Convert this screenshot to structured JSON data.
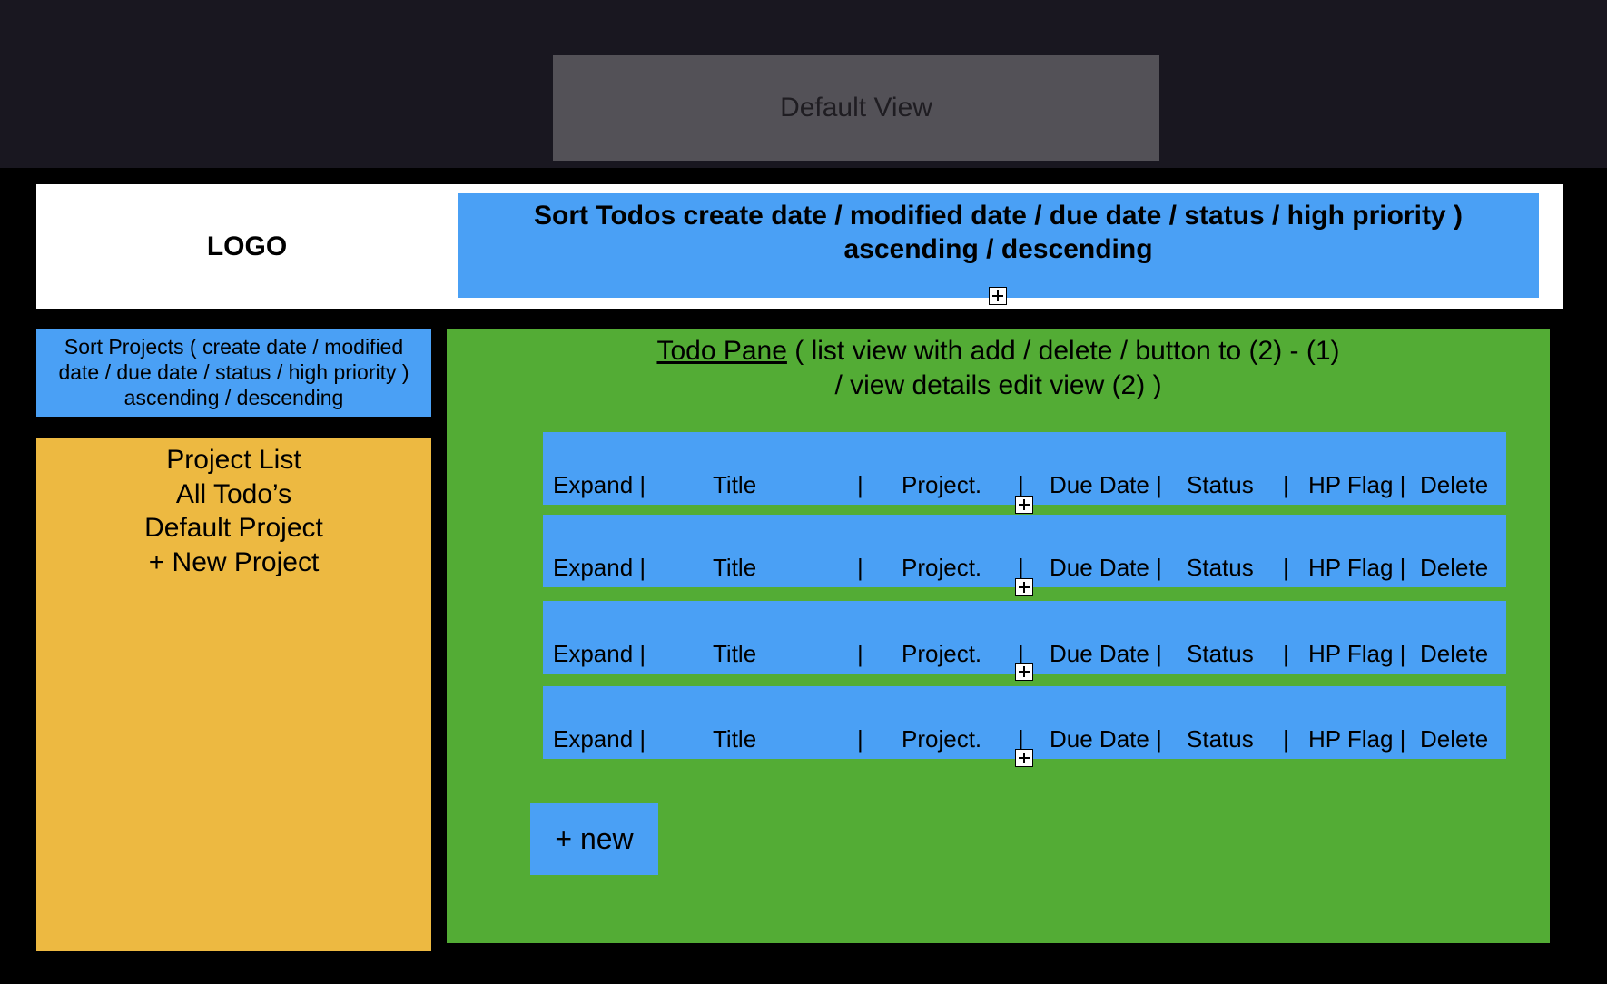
{
  "top_bar": {
    "default_view_label": "Default View"
  },
  "header": {
    "logo": "LOGO",
    "sort_todos_line1": "Sort Todos create date  / modified date / due date / status / high priority )",
    "sort_todos_line2": "ascending / descending"
  },
  "sidebar": {
    "sort_projects_line1": "Sort Projects ( create date  / modified",
    "sort_projects_line2": "date / due date / status / high priority )",
    "sort_projects_line3": "ascending / descending",
    "project_list": {
      "heading": "Project List",
      "all_todos": "All Todo’s",
      "default_project": "Default Project",
      "new_project": "+ New Project"
    }
  },
  "todo_pane": {
    "title_link": "Todo Pane",
    "title_rest_line1": " ( list view with add / delete / button to (2) - (1)",
    "title_line2": "/ view details  edit  view (2) )",
    "rows": [
      {
        "expand": "Expand  |",
        "title": "Title",
        "sep1": "|",
        "project": "Project.",
        "sep2": "|",
        "due_date": "Due  Date  |",
        "status": "Status",
        "sep3": "|",
        "hp_flag": "HP Flag |",
        "delete": "Delete"
      },
      {
        "expand": "Expand  |",
        "title": "Title",
        "sep1": "|",
        "project": "Project.",
        "sep2": "|",
        "due_date": "Due  Date  |",
        "status": "Status",
        "sep3": "|",
        "hp_flag": "HP Flag |",
        "delete": "Delete"
      },
      {
        "expand": "Expand  |",
        "title": "Title",
        "sep1": "|",
        "project": "Project.",
        "sep2": "|",
        "due_date": "Due  Date  |",
        "status": "Status",
        "sep3": "|",
        "hp_flag": "HP Flag |",
        "delete": "Delete"
      },
      {
        "expand": "Expand  |",
        "title": "Title",
        "sep1": "|",
        "project": "Project.",
        "sep2": "|",
        "due_date": "Due  Date  |",
        "status": "Status",
        "sep3": "|",
        "hp_flag": "HP Flag |",
        "delete": "Delete"
      }
    ],
    "new_button": "+ new"
  },
  "colors": {
    "top_strip": "#191720",
    "default_view": "#535157",
    "blue": "#4aa0f5",
    "green": "#53ac35",
    "yellow": "#edb941"
  }
}
